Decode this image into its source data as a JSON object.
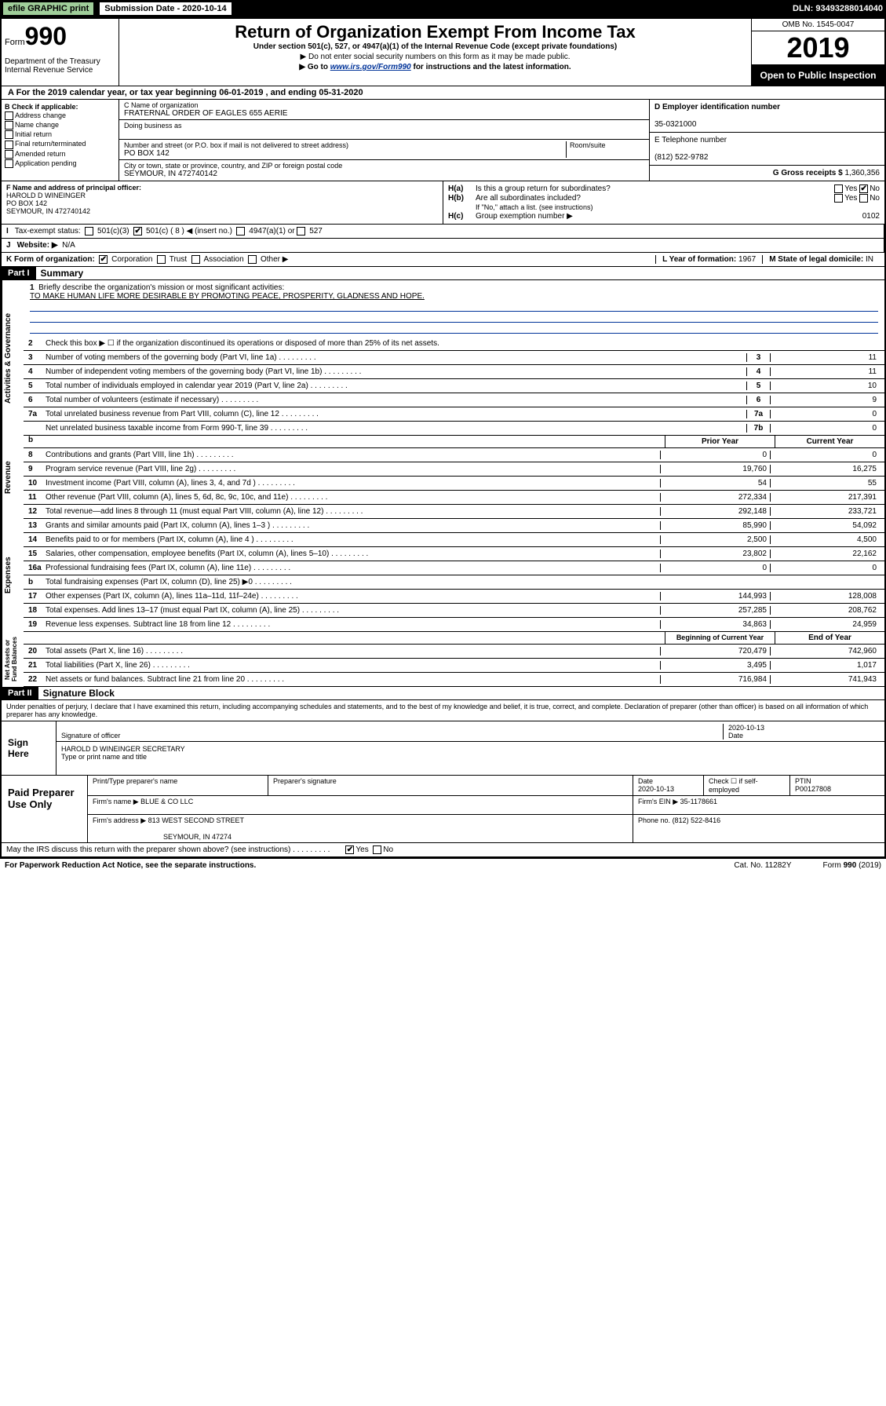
{
  "top": {
    "efile": "efile GRAPHIC print",
    "sub_label": "Submission Date - 2020-10-14",
    "dln": "DLN: 93493288014040"
  },
  "header": {
    "form_word": "Form",
    "form_num": "990",
    "title": "Return of Organization Exempt From Income Tax",
    "sub": "Under section 501(c), 527, or 4947(a)(1) of the Internal Revenue Code (except private foundations)",
    "line1": "▶ Do not enter social security numbers on this form as it may be made public.",
    "line2_pre": "▶ Go to ",
    "line2_link": "www.irs.gov/Form990",
    "line2_post": " for instructions and the latest information.",
    "dept": "Department of the Treasury\nInternal Revenue Service",
    "omb": "OMB No. 1545-0047",
    "year": "2019",
    "open": "Open to Public Inspection"
  },
  "a_line": "For the 2019 calendar year, or tax year beginning 06-01-2019    , and ending 05-31-2020",
  "b": {
    "label": "B Check if applicable:",
    "opts": [
      "Address change",
      "Name change",
      "Initial return",
      "Final return/terminated",
      "Amended return",
      "Application pending"
    ]
  },
  "c": {
    "name_lbl": "C Name of organization",
    "name": "FRATERNAL ORDER OF EAGLES 655 AERIE",
    "dba_lbl": "Doing business as",
    "addr_lbl": "Number and street (or P.O. box if mail is not delivered to street address)",
    "room_lbl": "Room/suite",
    "addr": "PO BOX 142",
    "city_lbl": "City or town, state or province, country, and ZIP or foreign postal code",
    "city": "SEYMOUR, IN  472740142"
  },
  "d": {
    "lbl": "D Employer identification number",
    "val": "35-0321000"
  },
  "e": {
    "lbl": "E Telephone number",
    "val": "(812) 522-9782"
  },
  "g": {
    "lbl": "G Gross receipts $",
    "val": "1,360,356"
  },
  "f": {
    "lbl": "F  Name and address of principal officer:",
    "name": "HAROLD D WINEINGER",
    "addr1": "PO BOX 142",
    "addr2": "SEYMOUR, IN  472740142"
  },
  "h": {
    "a_lbl": "Is this a group return for subordinates?",
    "a_yes": "Yes",
    "a_no": "No",
    "b_lbl": "Are all subordinates included?",
    "c_lbl": "Group exemption number ▶",
    "c_val": "0102",
    "if_no": "If \"No,\" attach a list. (see instructions)"
  },
  "i": {
    "lbl": "Tax-exempt status:",
    "c3": "501(c)(3)",
    "c": "501(c) ( 8 ) ◀ (insert no.)",
    "a1": "4947(a)(1) or",
    "527": "527"
  },
  "j": {
    "lbl": "Website: ▶",
    "val": "N/A"
  },
  "k": {
    "lbl": "K Form of organization:",
    "corp": "Corporation",
    "trust": "Trust",
    "assoc": "Association",
    "other": "Other ▶"
  },
  "l": {
    "lbl": "L Year of formation:",
    "val": "1967"
  },
  "m": {
    "lbl": "M State of legal domicile:",
    "val": "IN"
  },
  "part1": {
    "hdr": "Part I",
    "title": "Summary"
  },
  "part2": {
    "hdr": "Part II",
    "title": "Signature Block"
  },
  "mission": {
    "n": "1",
    "t": "Briefly describe the organization's mission or most significant activities:",
    "val": "TO MAKE HUMAN LIFE MORE DESIRABLE BY PROMOTING PEACE, PROSPERITY, GLADNESS AND HOPE."
  },
  "line2": "Check this box ▶ ☐  if the organization discontinued its operations or disposed of more than 25% of its net assets.",
  "gov_lines": [
    {
      "n": "3",
      "t": "Number of voting members of the governing body (Part VI, line 1a)",
      "box": "3",
      "v": "11"
    },
    {
      "n": "4",
      "t": "Number of independent voting members of the governing body (Part VI, line 1b)",
      "box": "4",
      "v": "11"
    },
    {
      "n": "5",
      "t": "Total number of individuals employed in calendar year 2019 (Part V, line 2a)",
      "box": "5",
      "v": "10"
    },
    {
      "n": "6",
      "t": "Total number of volunteers (estimate if necessary)",
      "box": "6",
      "v": "9"
    },
    {
      "n": "7a",
      "t": "Total unrelated business revenue from Part VIII, column (C), line 12",
      "box": "7a",
      "v": "0"
    },
    {
      "n": "",
      "t": "Net unrelated business taxable income from Form 990-T, line 39",
      "box": "7b",
      "v": "0"
    }
  ],
  "col_head": {
    "b": "b",
    "prior": "Prior Year",
    "curr": "Current Year"
  },
  "rev_lines": [
    {
      "n": "8",
      "t": "Contributions and grants (Part VIII, line 1h)",
      "p": "0",
      "c": "0"
    },
    {
      "n": "9",
      "t": "Program service revenue (Part VIII, line 2g)",
      "p": "19,760",
      "c": "16,275"
    },
    {
      "n": "10",
      "t": "Investment income (Part VIII, column (A), lines 3, 4, and 7d )",
      "p": "54",
      "c": "55"
    },
    {
      "n": "11",
      "t": "Other revenue (Part VIII, column (A), lines 5, 6d, 8c, 9c, 10c, and 11e)",
      "p": "272,334",
      "c": "217,391"
    },
    {
      "n": "12",
      "t": "Total revenue—add lines 8 through 11 (must equal Part VIII, column (A), line 12)",
      "p": "292,148",
      "c": "233,721"
    }
  ],
  "exp_lines": [
    {
      "n": "13",
      "t": "Grants and similar amounts paid (Part IX, column (A), lines 1–3 )",
      "p": "85,990",
      "c": "54,092"
    },
    {
      "n": "14",
      "t": "Benefits paid to or for members (Part IX, column (A), line 4 )",
      "p": "2,500",
      "c": "4,500"
    },
    {
      "n": "15",
      "t": "Salaries, other compensation, employee benefits (Part IX, column (A), lines 5–10)",
      "p": "23,802",
      "c": "22,162"
    },
    {
      "n": "16a",
      "t": "Professional fundraising fees (Part IX, column (A), line 11e)",
      "p": "0",
      "c": "0"
    },
    {
      "n": "b",
      "t": "Total fundraising expenses (Part IX, column (D), line 25) ▶0",
      "p": "",
      "c": "",
      "gray": true
    },
    {
      "n": "17",
      "t": "Other expenses (Part IX, column (A), lines 11a–11d, 11f–24e)",
      "p": "144,993",
      "c": "128,008"
    },
    {
      "n": "18",
      "t": "Total expenses. Add lines 13–17 (must equal Part IX, column (A), line 25)",
      "p": "257,285",
      "c": "208,762"
    },
    {
      "n": "19",
      "t": "Revenue less expenses. Subtract line 18 from line 12",
      "p": "34,863",
      "c": "24,959"
    }
  ],
  "na_head": {
    "b": "Beginning of Current Year",
    "e": "End of Year"
  },
  "na_lines": [
    {
      "n": "20",
      "t": "Total assets (Part X, line 16)",
      "p": "720,479",
      "c": "742,960"
    },
    {
      "n": "21",
      "t": "Total liabilities (Part X, line 26)",
      "p": "3,495",
      "c": "1,017"
    },
    {
      "n": "22",
      "t": "Net assets or fund balances. Subtract line 21 from line 20",
      "p": "716,984",
      "c": "741,943"
    }
  ],
  "perjury": "Under penalties of perjury, I declare that I have examined this return, including accompanying schedules and statements, and to the best of my knowledge and belief, it is true, correct, and complete. Declaration of preparer (other than officer) is based on all information of which preparer has any knowledge.",
  "sign": {
    "here": "Sign Here",
    "sig_lbl": "Signature of officer",
    "date_lbl": "Date",
    "date": "2020-10-13",
    "name": "HAROLD D WINEINGER  SECRETARY",
    "name_lbl": "Type or print name and title"
  },
  "prep": {
    "hdr": "Paid Preparer Use Only",
    "name_lbl": "Print/Type preparer's name",
    "sig_lbl": "Preparer's signature",
    "date_lbl": "Date",
    "date": "2020-10-13",
    "check_lbl": "Check ☐ if self-employed",
    "ptin_lbl": "PTIN",
    "ptin": "P00127808",
    "firm_lbl": "Firm's name   ▶",
    "firm": "BLUE & CO LLC",
    "ein_lbl": "Firm's EIN ▶",
    "ein": "35-1178661",
    "addr_lbl": "Firm's address ▶",
    "addr": "813 WEST SECOND STREET",
    "addr2": "SEYMOUR, IN  47274",
    "phone_lbl": "Phone no.",
    "phone": "(812) 522-8416"
  },
  "discuss": "May the IRS discuss this return with the preparer shown above? (see instructions)",
  "footer": {
    "pra": "For Paperwork Reduction Act Notice, see the separate instructions.",
    "cat": "Cat. No. 11282Y",
    "form": "Form 990 (2019)"
  }
}
